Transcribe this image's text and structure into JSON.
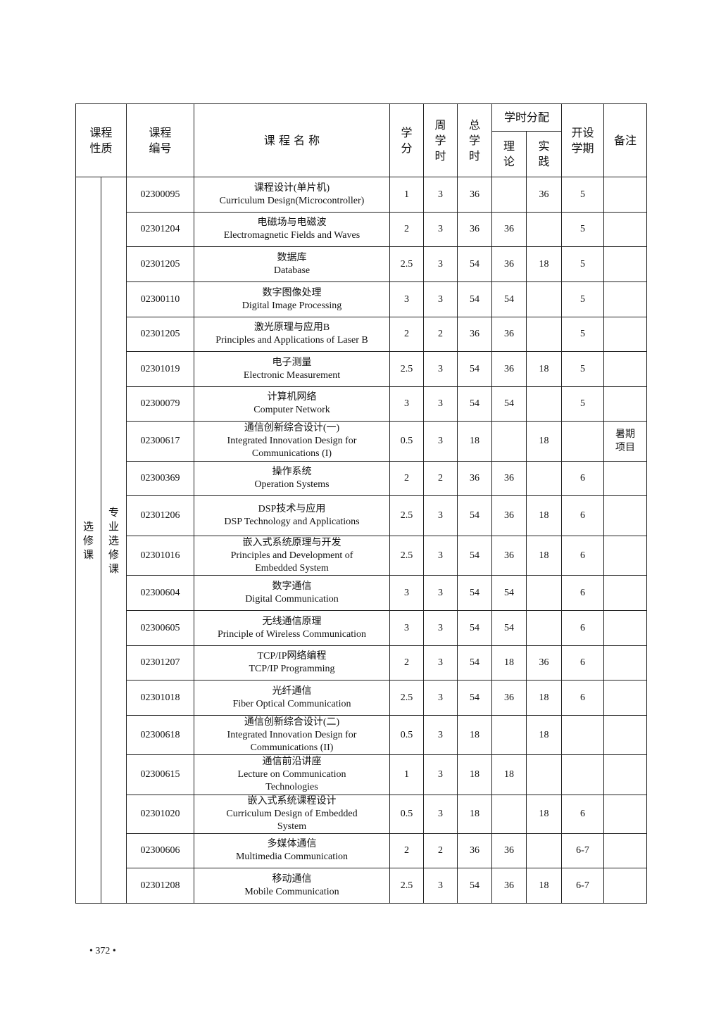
{
  "header": {
    "nature": "课程性质",
    "code": "课程编号",
    "name": "课 程 名 称",
    "credit": "学分",
    "weekly_hours": "周学时",
    "total_hours": "总学时",
    "hours_allocation": "学时分配",
    "theory": "理论",
    "practice": "实践",
    "semester": "开设学期",
    "remarks": "备注"
  },
  "category": "选修课",
  "subcategory": "专业选修课",
  "rows": [
    {
      "code": "02300095",
      "zh": "课程设计(单片机)",
      "en": "Curriculum Design(Microcontroller)",
      "credit": "1",
      "weekly": "3",
      "total": "36",
      "theory": "",
      "practice": "36",
      "semester": "5",
      "note": ""
    },
    {
      "code": "02301204",
      "zh": "电磁场与电磁波",
      "en": "Electromagnetic Fields and Waves",
      "credit": "2",
      "weekly": "3",
      "total": "36",
      "theory": "36",
      "practice": "",
      "semester": "5",
      "note": ""
    },
    {
      "code": "02301205",
      "zh": "数据库",
      "en": "Database",
      "credit": "2.5",
      "weekly": "3",
      "total": "54",
      "theory": "36",
      "practice": "18",
      "semester": "5",
      "note": ""
    },
    {
      "code": "02300110",
      "zh": "数字图像处理",
      "en": "Digital Image Processing",
      "credit": "3",
      "weekly": "3",
      "total": "54",
      "theory": "54",
      "practice": "",
      "semester": "5",
      "note": ""
    },
    {
      "code": "02301205",
      "zh": "激光原理与应用B",
      "en": "Principles and Applications of Laser B",
      "credit": "2",
      "weekly": "2",
      "total": "36",
      "theory": "36",
      "practice": "",
      "semester": "5",
      "note": ""
    },
    {
      "code": "02301019",
      "zh": "电子测量",
      "en": "Electronic Measurement",
      "credit": "2.5",
      "weekly": "3",
      "total": "54",
      "theory": "36",
      "practice": "18",
      "semester": "5",
      "note": ""
    },
    {
      "code": "02300079",
      "zh": "计算机网络",
      "en": "Computer Network",
      "credit": "3",
      "weekly": "3",
      "total": "54",
      "theory": "54",
      "practice": "",
      "semester": "5",
      "note": ""
    },
    {
      "code": "02300617",
      "zh": "通信创新综合设计(一)",
      "en": "Integrated Innovation Design for Communications (I)",
      "credit": "0.5",
      "weekly": "3",
      "total": "18",
      "theory": "",
      "practice": "18",
      "semester": "",
      "note": "暑期项目"
    },
    {
      "code": "02300369",
      "zh": "操作系统",
      "en": "Operation Systems",
      "credit": "2",
      "weekly": "2",
      "total": "36",
      "theory": "36",
      "practice": "",
      "semester": "6",
      "note": ""
    },
    {
      "code": "02301206",
      "zh": "DSP技术与应用",
      "en": "DSP Technology and Applications",
      "credit": "2.5",
      "weekly": "3",
      "total": "54",
      "theory": "36",
      "practice": "18",
      "semester": "6",
      "note": ""
    },
    {
      "code": "02301016",
      "zh": "嵌入式系统原理与开发",
      "en": "Principles and Development of Embedded System",
      "credit": "2.5",
      "weekly": "3",
      "total": "54",
      "theory": "36",
      "practice": "18",
      "semester": "6",
      "note": ""
    },
    {
      "code": "02300604",
      "zh": "数字通信",
      "en": "Digital Communication",
      "credit": "3",
      "weekly": "3",
      "total": "54",
      "theory": "54",
      "practice": "",
      "semester": "6",
      "note": ""
    },
    {
      "code": "02300605",
      "zh": "无线通信原理",
      "en": "Principle of Wireless Communication",
      "credit": "3",
      "weekly": "3",
      "total": "54",
      "theory": "54",
      "practice": "",
      "semester": "6",
      "note": ""
    },
    {
      "code": "02301207",
      "zh": "TCP/IP网络编程",
      "en": "TCP/IP Programming",
      "credit": "2",
      "weekly": "3",
      "total": "54",
      "theory": "18",
      "practice": "36",
      "semester": "6",
      "note": ""
    },
    {
      "code": "02301018",
      "zh": "光纤通信",
      "en": "Fiber Optical Communication",
      "credit": "2.5",
      "weekly": "3",
      "total": "54",
      "theory": "36",
      "practice": "18",
      "semester": "6",
      "note": ""
    },
    {
      "code": "02300618",
      "zh": "通信创新综合设计(二)",
      "en": "Integrated Innovation Design for Communications (II)",
      "credit": "0.5",
      "weekly": "3",
      "total": "18",
      "theory": "",
      "practice": "18",
      "semester": "",
      "note": ""
    },
    {
      "code": "02300615",
      "zh": "通信前沿讲座",
      "en": "Lecture on Communication Technologies",
      "credit": "1",
      "weekly": "3",
      "total": "18",
      "theory": "18",
      "practice": "",
      "semester": "",
      "note": ""
    },
    {
      "code": "02301020",
      "zh": "嵌入式系统课程设计",
      "en": "Curriculum Design of Embedded System",
      "credit": "0.5",
      "weekly": "3",
      "total": "18",
      "theory": "",
      "practice": "18",
      "semester": "6",
      "note": ""
    },
    {
      "code": "02300606",
      "zh": "多媒体通信",
      "en": "Multimedia Communication",
      "credit": "2",
      "weekly": "2",
      "total": "36",
      "theory": "36",
      "practice": "",
      "semester": "6-7",
      "note": ""
    },
    {
      "code": "02301208",
      "zh": "移动通信",
      "en": "Mobile Communication",
      "credit": "2.5",
      "weekly": "3",
      "total": "54",
      "theory": "36",
      "practice": "18",
      "semester": "6-7",
      "note": ""
    }
  ],
  "page_number": "• 372 •"
}
